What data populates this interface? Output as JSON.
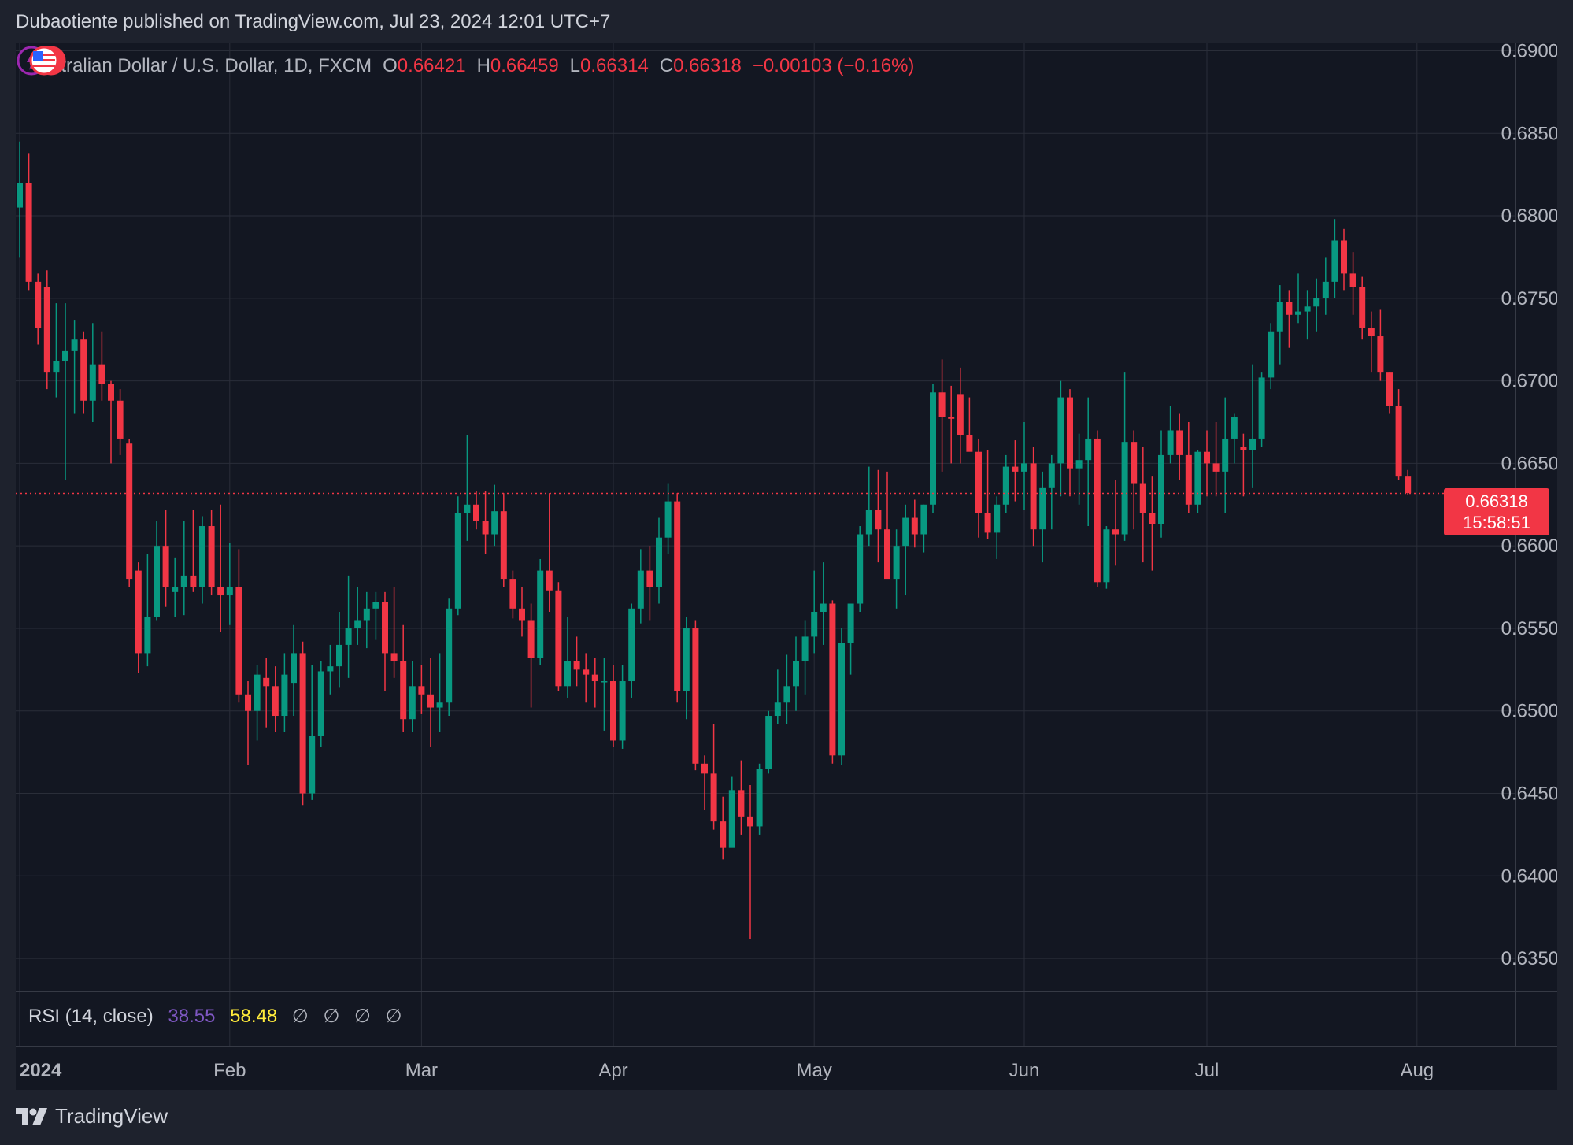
{
  "header": {
    "published_by": "Dubaotiente published on TradingView.com, Jul 23, 2024 12:01 UTC+7"
  },
  "legend": {
    "symbol": "Australian Dollar / U.S. Dollar, 1D, FXCM",
    "o_key": "O",
    "o_val": "0.66421",
    "h_key": "H",
    "h_val": "0.66459",
    "l_key": "L",
    "l_val": "0.66314",
    "c_key": "C",
    "c_val": "0.66318",
    "change": "−0.00103 (−0.16%)"
  },
  "rsi": {
    "label": "RSI (14, close)",
    "value1": "38.55",
    "value2": "58.48",
    "na": [
      "∅",
      "∅",
      "∅",
      "∅"
    ]
  },
  "last_price": {
    "price": "0.66318",
    "countdown": "15:58:51"
  },
  "footer": {
    "brand": "TradingView"
  },
  "colors": {
    "up": "#089981",
    "down": "#f23645",
    "background": "#131722",
    "grid": "#2a2e39",
    "rsi_line": "#7e57c2",
    "rsi_ma": "#ffeb3b"
  },
  "chart_data": {
    "type": "candlestick",
    "symbol": "AUDUSD",
    "interval": "1D",
    "ylim": [
      0.633,
      0.6905
    ],
    "y_ticks": [
      "0.69000",
      "0.68500",
      "0.68000",
      "0.67500",
      "0.67000",
      "0.66500",
      "0.66000",
      "0.65500",
      "0.65000",
      "0.64500",
      "0.64000",
      "0.63500"
    ],
    "x_ticks": [
      {
        "label": "2024",
        "index": 0
      },
      {
        "label": "Feb",
        "index": 23
      },
      {
        "label": "Mar",
        "index": 44
      },
      {
        "label": "Apr",
        "index": 65
      },
      {
        "label": "May",
        "index": 87
      },
      {
        "label": "Jun",
        "index": 110
      },
      {
        "label": "Jul",
        "index": 130
      },
      {
        "label": "Aug",
        "index": 153
      }
    ],
    "last_close": 0.66318,
    "candles": [
      [
        0.6805,
        0.6845,
        0.6775,
        0.682
      ],
      [
        0.682,
        0.6838,
        0.6755,
        0.676
      ],
      [
        0.676,
        0.6765,
        0.6722,
        0.6732
      ],
      [
        0.6757,
        0.6767,
        0.6695,
        0.6705
      ],
      [
        0.6705,
        0.6747,
        0.669,
        0.6712
      ],
      [
        0.6712,
        0.6747,
        0.664,
        0.6718
      ],
      [
        0.6718,
        0.6737,
        0.668,
        0.6725
      ],
      [
        0.6725,
        0.673,
        0.668,
        0.6688
      ],
      [
        0.6688,
        0.6735,
        0.6675,
        0.671
      ],
      [
        0.671,
        0.673,
        0.6688,
        0.6698
      ],
      [
        0.6698,
        0.67,
        0.665,
        0.6688
      ],
      [
        0.6688,
        0.6695,
        0.6655,
        0.6665
      ],
      [
        0.6662,
        0.6665,
        0.6575,
        0.658
      ],
      [
        0.6585,
        0.659,
        0.6523,
        0.6535
      ],
      [
        0.6535,
        0.6595,
        0.6527,
        0.6557
      ],
      [
        0.6557,
        0.6615,
        0.6555,
        0.66
      ],
      [
        0.66,
        0.6622,
        0.6563,
        0.6575
      ],
      [
        0.6572,
        0.6593,
        0.6557,
        0.6575
      ],
      [
        0.6575,
        0.6615,
        0.6558,
        0.6582
      ],
      [
        0.6582,
        0.6622,
        0.6572,
        0.6575
      ],
      [
        0.6575,
        0.6618,
        0.6565,
        0.6612
      ],
      [
        0.6612,
        0.6622,
        0.657,
        0.6575
      ],
      [
        0.6575,
        0.6625,
        0.6548,
        0.657
      ],
      [
        0.657,
        0.6602,
        0.6552,
        0.6575
      ],
      [
        0.6575,
        0.6598,
        0.6505,
        0.651
      ],
      [
        0.651,
        0.6518,
        0.6467,
        0.65
      ],
      [
        0.65,
        0.6528,
        0.6482,
        0.6522
      ],
      [
        0.652,
        0.6532,
        0.649,
        0.6515
      ],
      [
        0.6515,
        0.6527,
        0.6487,
        0.6497
      ],
      [
        0.6497,
        0.6535,
        0.6487,
        0.6522
      ],
      [
        0.6517,
        0.6552,
        0.6497,
        0.6535
      ],
      [
        0.6535,
        0.6542,
        0.6443,
        0.645
      ],
      [
        0.645,
        0.6528,
        0.6446,
        0.6485
      ],
      [
        0.6485,
        0.653,
        0.6478,
        0.6524
      ],
      [
        0.6524,
        0.654,
        0.651,
        0.6527
      ],
      [
        0.6527,
        0.656,
        0.6514,
        0.654
      ],
      [
        0.654,
        0.6582,
        0.652,
        0.655
      ],
      [
        0.655,
        0.6575,
        0.654,
        0.6555
      ],
      [
        0.6555,
        0.6572,
        0.6538,
        0.6562
      ],
      [
        0.6562,
        0.6572,
        0.6543,
        0.6566
      ],
      [
        0.6566,
        0.6572,
        0.6512,
        0.6535
      ],
      [
        0.6535,
        0.6575,
        0.652,
        0.653
      ],
      [
        0.653,
        0.6552,
        0.6487,
        0.6495
      ],
      [
        0.6495,
        0.653,
        0.6487,
        0.6515
      ],
      [
        0.6515,
        0.6528,
        0.6498,
        0.651
      ],
      [
        0.651,
        0.6532,
        0.6478,
        0.6502
      ],
      [
        0.6502,
        0.6535,
        0.6487,
        0.6505
      ],
      [
        0.6505,
        0.6568,
        0.6497,
        0.6562
      ],
      [
        0.6562,
        0.663,
        0.6558,
        0.662
      ],
      [
        0.662,
        0.6667,
        0.6603,
        0.6625
      ],
      [
        0.6625,
        0.6633,
        0.661,
        0.6615
      ],
      [
        0.6615,
        0.6633,
        0.6595,
        0.6607
      ],
      [
        0.6607,
        0.6637,
        0.66,
        0.6621
      ],
      [
        0.6621,
        0.6632,
        0.6575,
        0.658
      ],
      [
        0.658,
        0.6585,
        0.6556,
        0.6562
      ],
      [
        0.6562,
        0.6575,
        0.6545,
        0.6555
      ],
      [
        0.6555,
        0.6565,
        0.6502,
        0.6532
      ],
      [
        0.6532,
        0.6592,
        0.6528,
        0.6585
      ],
      [
        0.6585,
        0.6632,
        0.656,
        0.6573
      ],
      [
        0.6573,
        0.6578,
        0.6512,
        0.6515
      ],
      [
        0.6515,
        0.6557,
        0.6508,
        0.653
      ],
      [
        0.653,
        0.6545,
        0.6515,
        0.6525
      ],
      [
        0.6525,
        0.6535,
        0.6505,
        0.6522
      ],
      [
        0.6522,
        0.6532,
        0.6502,
        0.6518
      ],
      [
        0.6518,
        0.6532,
        0.6488,
        0.6518
      ],
      [
        0.6518,
        0.6528,
        0.6478,
        0.6482
      ],
      [
        0.6482,
        0.6528,
        0.6477,
        0.6518
      ],
      [
        0.6518,
        0.6565,
        0.6508,
        0.6562
      ],
      [
        0.6562,
        0.6598,
        0.6553,
        0.6585
      ],
      [
        0.6585,
        0.66,
        0.6555,
        0.6575
      ],
      [
        0.6575,
        0.6617,
        0.6565,
        0.6605
      ],
      [
        0.6605,
        0.6638,
        0.6595,
        0.6627
      ],
      [
        0.6627,
        0.6632,
        0.6505,
        0.6512
      ],
      [
        0.6512,
        0.6557,
        0.6495,
        0.655
      ],
      [
        0.655,
        0.6555,
        0.6464,
        0.6468
      ],
      [
        0.6468,
        0.6473,
        0.644,
        0.6462
      ],
      [
        0.6462,
        0.6492,
        0.6428,
        0.6433
      ],
      [
        0.6433,
        0.6448,
        0.641,
        0.6417
      ],
      [
        0.6417,
        0.646,
        0.642,
        0.6452
      ],
      [
        0.6452,
        0.647,
        0.6425,
        0.6436
      ],
      [
        0.6436,
        0.6455,
        0.6362,
        0.643
      ],
      [
        0.643,
        0.6468,
        0.6425,
        0.6465
      ],
      [
        0.6465,
        0.65,
        0.6462,
        0.6497
      ],
      [
        0.6497,
        0.6525,
        0.6492,
        0.6505
      ],
      [
        0.6505,
        0.6534,
        0.6492,
        0.6515
      ],
      [
        0.6515,
        0.6545,
        0.65,
        0.653
      ],
      [
        0.653,
        0.6555,
        0.651,
        0.6545
      ],
      [
        0.6545,
        0.6585,
        0.6535,
        0.656
      ],
      [
        0.656,
        0.659,
        0.654,
        0.6565
      ],
      [
        0.6565,
        0.6567,
        0.6468,
        0.6473
      ],
      [
        0.6473,
        0.655,
        0.6467,
        0.6541
      ],
      [
        0.6541,
        0.6565,
        0.6522,
        0.6565
      ],
      [
        0.6565,
        0.6612,
        0.656,
        0.6607
      ],
      [
        0.6607,
        0.6648,
        0.66,
        0.6622
      ],
      [
        0.6622,
        0.6646,
        0.659,
        0.661
      ],
      [
        0.661,
        0.6645,
        0.6585,
        0.658
      ],
      [
        0.658,
        0.661,
        0.6562,
        0.66
      ],
      [
        0.66,
        0.6625,
        0.657,
        0.6617
      ],
      [
        0.6617,
        0.6628,
        0.6599,
        0.6607
      ],
      [
        0.6607,
        0.6625,
        0.6596,
        0.6625
      ],
      [
        0.6625,
        0.6698,
        0.662,
        0.6693
      ],
      [
        0.6693,
        0.6713,
        0.6645,
        0.6678
      ],
      [
        0.6678,
        0.6697,
        0.665,
        0.6677
      ],
      [
        0.6692,
        0.6708,
        0.665,
        0.6667
      ],
      [
        0.6667,
        0.669,
        0.666,
        0.6657
      ],
      [
        0.6657,
        0.6665,
        0.6605,
        0.662
      ],
      [
        0.662,
        0.6658,
        0.6604,
        0.6608
      ],
      [
        0.6608,
        0.663,
        0.6592,
        0.6625
      ],
      [
        0.6625,
        0.6655,
        0.662,
        0.6648
      ],
      [
        0.6648,
        0.6664,
        0.6627,
        0.6645
      ],
      [
        0.6645,
        0.6675,
        0.6622,
        0.665
      ],
      [
        0.665,
        0.666,
        0.66,
        0.661
      ],
      [
        0.661,
        0.6645,
        0.659,
        0.6635
      ],
      [
        0.6635,
        0.6655,
        0.661,
        0.665
      ],
      [
        0.665,
        0.67,
        0.663,
        0.669
      ],
      [
        0.669,
        0.6695,
        0.663,
        0.6647
      ],
      [
        0.6647,
        0.6668,
        0.6625,
        0.6652
      ],
      [
        0.6652,
        0.669,
        0.6612,
        0.6665
      ],
      [
        0.6665,
        0.667,
        0.6575,
        0.6578
      ],
      [
        0.6578,
        0.6612,
        0.6574,
        0.661
      ],
      [
        0.661,
        0.664,
        0.6588,
        0.6607
      ],
      [
        0.6607,
        0.6705,
        0.6603,
        0.6663
      ],
      [
        0.6663,
        0.667,
        0.661,
        0.6638
      ],
      [
        0.6638,
        0.666,
        0.659,
        0.662
      ],
      [
        0.662,
        0.6642,
        0.6585,
        0.6613
      ],
      [
        0.6613,
        0.667,
        0.6605,
        0.6655
      ],
      [
        0.6655,
        0.6685,
        0.665,
        0.667
      ],
      [
        0.667,
        0.668,
        0.664,
        0.6655
      ],
      [
        0.6655,
        0.6675,
        0.662,
        0.6625
      ],
      [
        0.6625,
        0.6658,
        0.662,
        0.6657
      ],
      [
        0.6657,
        0.667,
        0.663,
        0.665
      ],
      [
        0.665,
        0.6675,
        0.663,
        0.6645
      ],
      [
        0.6645,
        0.669,
        0.662,
        0.6665
      ],
      [
        0.6665,
        0.668,
        0.665,
        0.6678
      ],
      [
        0.666,
        0.6668,
        0.663,
        0.6658
      ],
      [
        0.6658,
        0.671,
        0.6635,
        0.6665
      ],
      [
        0.6665,
        0.6705,
        0.666,
        0.6702
      ],
      [
        0.6702,
        0.6735,
        0.6695,
        0.673
      ],
      [
        0.673,
        0.6758,
        0.671,
        0.6748
      ],
      [
        0.6748,
        0.6755,
        0.672,
        0.674
      ],
      [
        0.674,
        0.6765,
        0.6735,
        0.6742
      ],
      [
        0.6742,
        0.6755,
        0.6725,
        0.6745
      ],
      [
        0.6745,
        0.6762,
        0.673,
        0.675
      ],
      [
        0.675,
        0.6775,
        0.674,
        0.676
      ],
      [
        0.676,
        0.6798,
        0.675,
        0.6785
      ],
      [
        0.6785,
        0.6792,
        0.6755,
        0.6765
      ],
      [
        0.6765,
        0.6778,
        0.674,
        0.6757
      ],
      [
        0.6757,
        0.6763,
        0.6725,
        0.6732
      ],
      [
        0.6732,
        0.6742,
        0.6705,
        0.6727
      ],
      [
        0.6727,
        0.6743,
        0.67,
        0.6705
      ],
      [
        0.6705,
        0.6705,
        0.668,
        0.6685
      ],
      [
        0.6685,
        0.6695,
        0.664,
        0.6642
      ],
      [
        0.6642,
        0.6646,
        0.6631,
        0.6632
      ]
    ]
  }
}
